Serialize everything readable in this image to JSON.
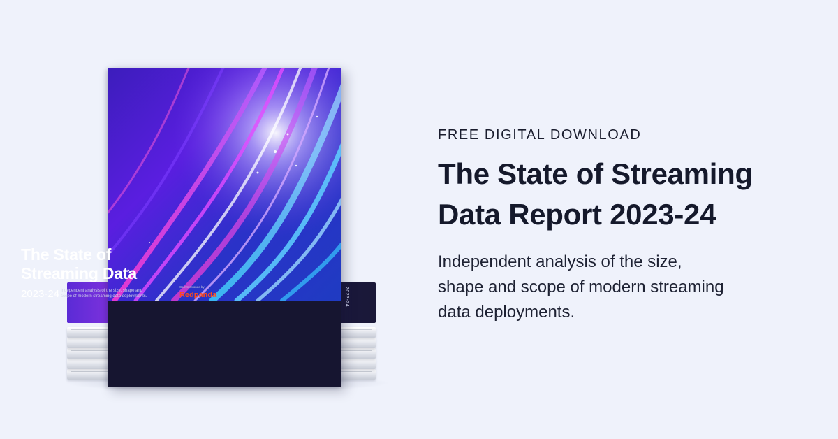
{
  "banner": {
    "eyebrow": "FREE DIGITAL DOWNLOAD",
    "headline_lines": [
      "The State of Streaming",
      "Data Report 2023-24"
    ],
    "description_lines": [
      "Independent analysis of the size,",
      "shape and scope of modern streaming",
      "data deployments."
    ]
  },
  "cover": {
    "title_lines": [
      "The State of",
      "Streaming Data"
    ],
    "year": "2023-24",
    "subtitle_lines": [
      "Independent analysis of the size, shape and",
      "scope of modern streaming data deployments."
    ],
    "commissioned_by": "Commissioned by",
    "brand": "Redpanda",
    "brand_color": "#ff4a1c"
  },
  "stack": {
    "spine_text": "2023-24"
  },
  "colors": {
    "background": "#eff2fb",
    "headline": "#15192b",
    "cover_panel": "#161530"
  }
}
